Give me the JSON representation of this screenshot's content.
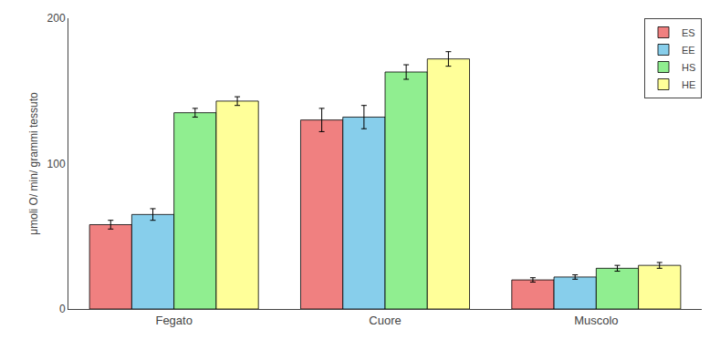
{
  "chart_data": {
    "type": "bar",
    "categories": [
      "Fegato",
      "Cuore",
      "Muscolo"
    ],
    "series": [
      {
        "name": "ES",
        "color": "#F08080",
        "values": [
          58,
          130,
          20
        ],
        "errors": [
          3,
          8,
          1.5
        ]
      },
      {
        "name": "EE",
        "color": "#87CEEB",
        "values": [
          65,
          132,
          22
        ],
        "errors": [
          4,
          8,
          1.5
        ]
      },
      {
        "name": "HS",
        "color": "#90EE90",
        "values": [
          135,
          163,
          28
        ],
        "errors": [
          3,
          5,
          2
        ]
      },
      {
        "name": "HE",
        "color": "#FFFF99",
        "values": [
          143,
          172,
          30
        ],
        "errors": [
          3,
          5,
          2
        ]
      }
    ],
    "ylabel": "μmoli O/ min/ grammi tessuto",
    "ylim": [
      0,
      200
    ],
    "yticks": [
      0,
      100,
      200
    ],
    "grid": false,
    "legend": "upper right"
  }
}
